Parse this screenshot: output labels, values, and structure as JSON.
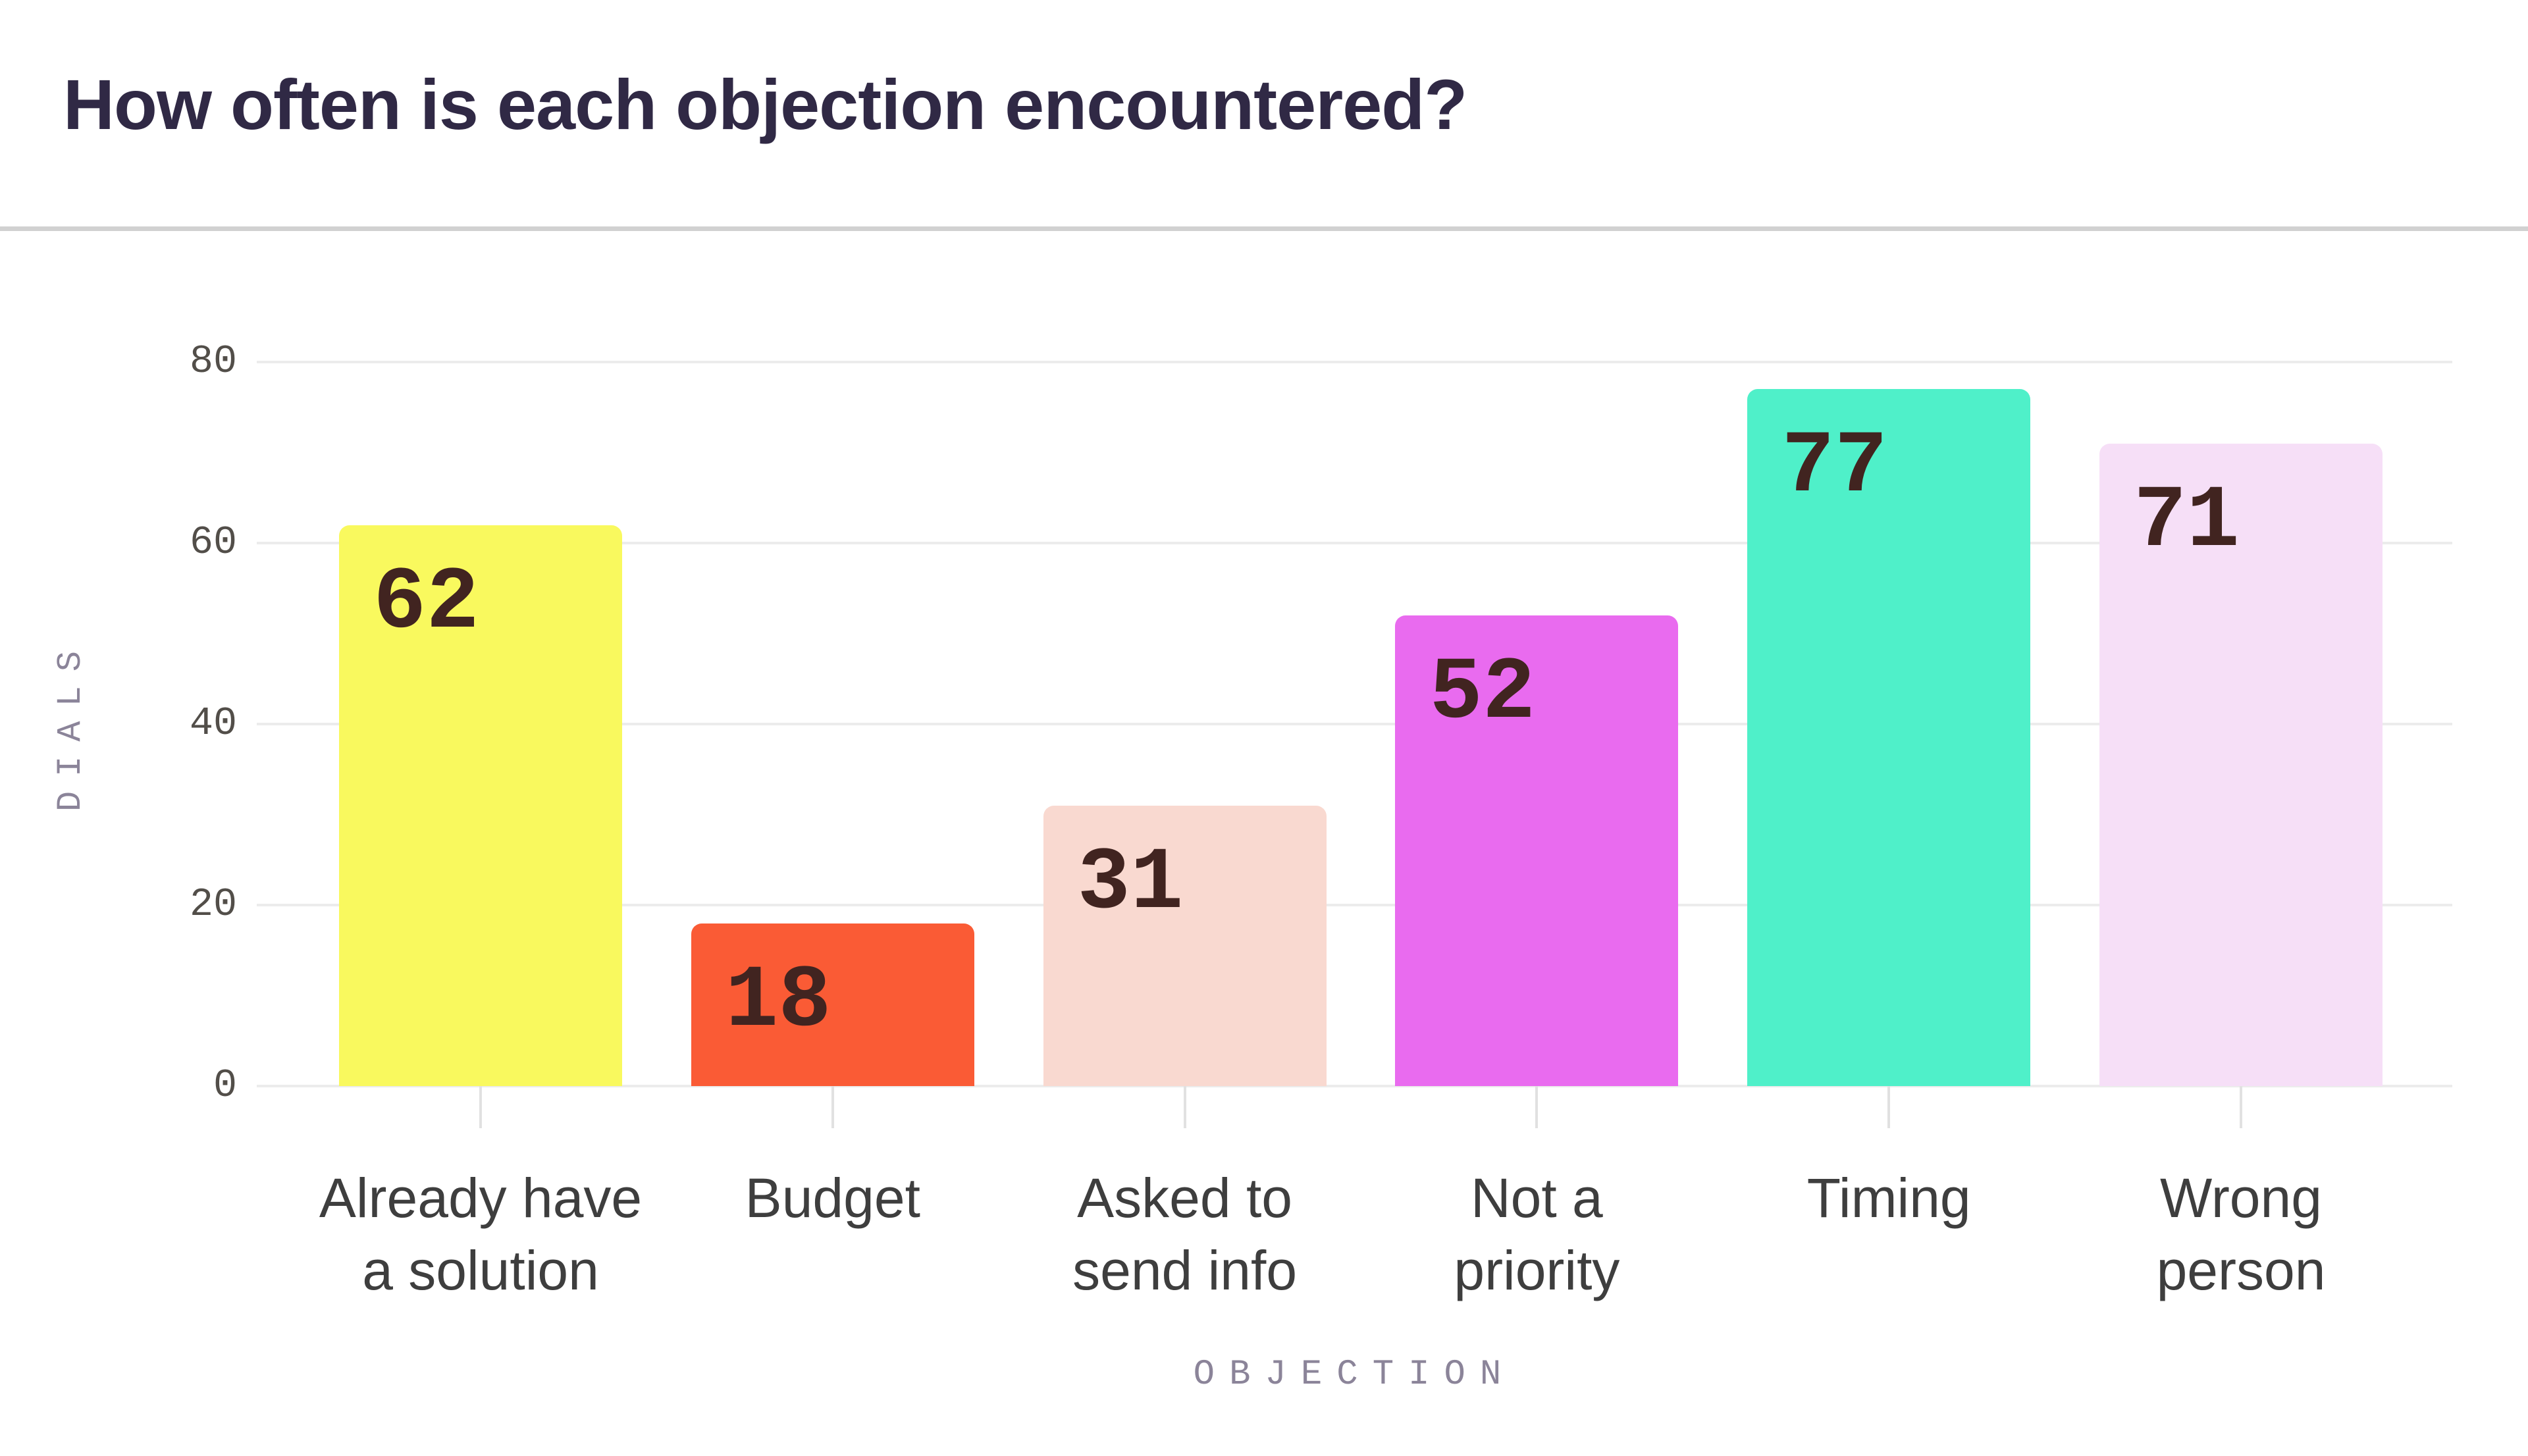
{
  "header": {
    "title": "How often is each objection encountered?"
  },
  "chart_data": {
    "type": "bar",
    "title": "How often is each objection encountered?",
    "categories": [
      "Already have\na solution",
      "Budget",
      "Asked to\nsend info",
      "Not a\npriority",
      "Timing",
      "Wrong\nperson"
    ],
    "values": [
      62,
      18,
      31,
      52,
      77,
      71
    ],
    "bar_colors": [
      "#f9f95e",
      "#fa5b35",
      "#f9d9d0",
      "#e96bef",
      "#4ff0c9",
      "#f6dff7"
    ],
    "xlabel": "OBJECTION",
    "ylabel": "DIALS",
    "yticks": [
      0,
      20,
      40,
      60,
      80
    ],
    "ylim": [
      0,
      80
    ],
    "grid": "horizontal gridlines at each y tick",
    "legend": "none",
    "value_label_position": "inside-top-left"
  },
  "style": {
    "title_color": "#302945",
    "value_label_color": "#412420",
    "axis_caption_color": "#8b8499",
    "ytick_label_color": "#524e49",
    "category_label_color": "#3e3e3e",
    "gridline_color": "#ececec",
    "divider_color": "#d1d1d1",
    "background_color": "#ffffff"
  }
}
